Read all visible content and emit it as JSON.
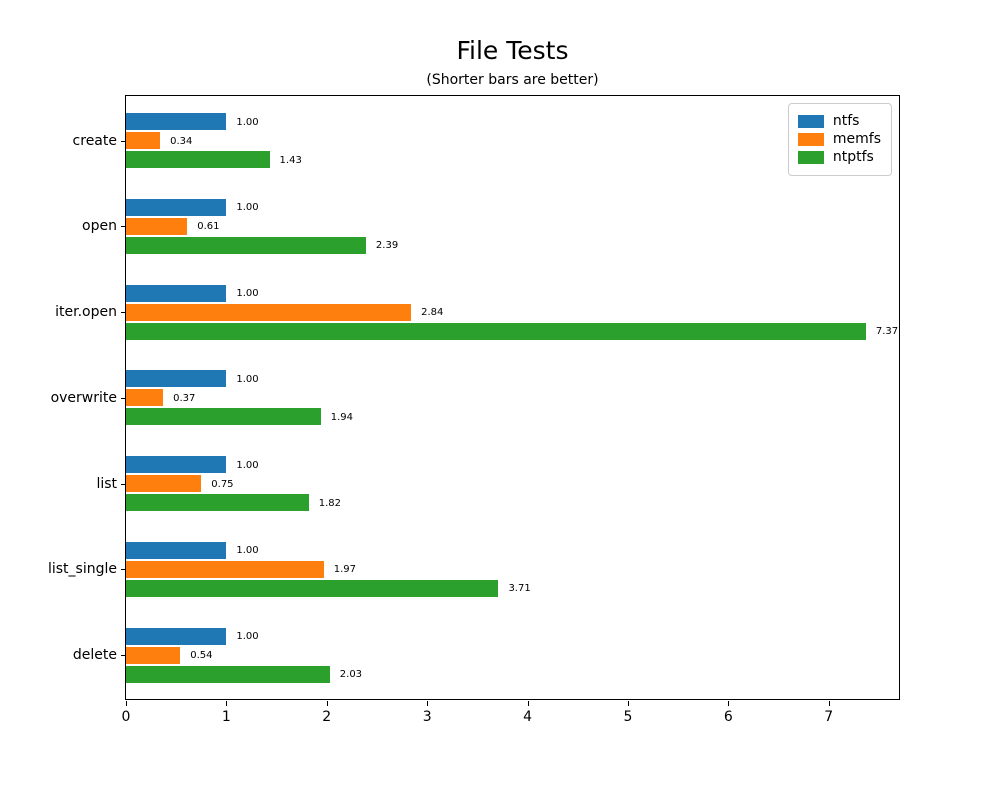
{
  "chart_data": {
    "type": "bar",
    "orientation": "horizontal",
    "title": "File Tests",
    "subtitle": "(Shorter bars are better)",
    "categories": [
      "create",
      "open",
      "iter.open",
      "overwrite",
      "list",
      "list_single",
      "delete"
    ],
    "series": [
      {
        "name": "ntfs",
        "color": "#1f77b4",
        "values": [
          1.0,
          1.0,
          1.0,
          1.0,
          1.0,
          1.0,
          1.0
        ]
      },
      {
        "name": "memfs",
        "color": "#ff7f0e",
        "values": [
          0.34,
          0.61,
          2.84,
          0.37,
          0.75,
          1.97,
          0.54
        ]
      },
      {
        "name": "ntptfs",
        "color": "#2ca02c",
        "values": [
          1.43,
          2.39,
          7.37,
          1.94,
          1.82,
          3.71,
          2.03
        ]
      }
    ],
    "bar_value_labels": {
      "ntfs": [
        "1.00",
        "1.00",
        "1.00",
        "1.00",
        "1.00",
        "1.00",
        "1.00"
      ],
      "memfs": [
        "0.34",
        "0.61",
        "2.84",
        "0.37",
        "0.75",
        "1.97",
        "0.54"
      ],
      "ntptfs": [
        "1.43",
        "2.39",
        "7.37",
        "1.94",
        "1.82",
        "3.71",
        "2.03"
      ]
    },
    "x_ticks": [
      0,
      1,
      2,
      3,
      4,
      5,
      6,
      7
    ],
    "xlim": [
      0,
      7.72
    ],
    "grid": false,
    "legend_position": "upper right",
    "value_label_decimals": 2
  }
}
